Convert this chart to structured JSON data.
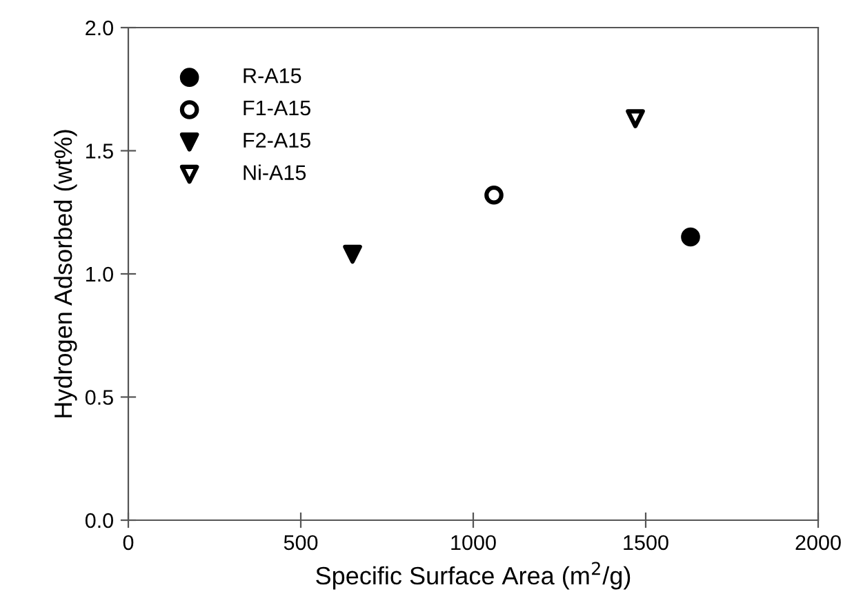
{
  "chart_data": {
    "type": "scatter",
    "xlabel": "Specific Surface Area (m$^{2}$/g)",
    "ylabel": "Hydrogen Adsorbed (wt%)",
    "xlim": [
      0,
      2000
    ],
    "ylim": [
      0,
      2.0
    ],
    "xticks": [
      0,
      500,
      1000,
      1500,
      2000
    ],
    "yticks": [
      {
        "value": 0,
        "label": "0.0"
      },
      0.5,
      {
        "value": 1,
        "label": "1.0"
      },
      1.5,
      {
        "value": 2,
        "label": "2.0"
      }
    ],
    "grid": false,
    "legend": "top left",
    "series": [
      {
        "name": "R-A15",
        "color": "#000000",
        "marker": "circle",
        "colors": [
          "#000000"
        ],
        "x": [
          1630
        ],
        "values": [
          1.15
        ]
      },
      {
        "name": "F1-A15",
        "color": "#000000",
        "marker": "circle",
        "colors": [
          "#ffffff"
        ],
        "x": [
          1060
        ],
        "values": [
          1.32
        ]
      },
      {
        "name": "F2-A15",
        "color": "#000000",
        "marker": "triangle",
        "colors": [
          "#000000"
        ],
        "x": [
          650
        ],
        "values": [
          1.08
        ]
      },
      {
        "name": "Ni-A15",
        "color": "#000000",
        "marker": "triangle",
        "colors": [
          "#ffffff"
        ],
        "x": [
          1470
        ],
        "values": [
          1.63
        ]
      }
    ]
  }
}
